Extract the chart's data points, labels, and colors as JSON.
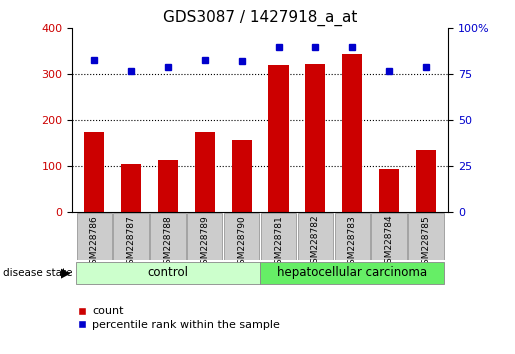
{
  "title": "GDS3087 / 1427918_a_at",
  "samples": [
    "GSM228786",
    "GSM228787",
    "GSM228788",
    "GSM228789",
    "GSM228790",
    "GSM228781",
    "GSM228782",
    "GSM228783",
    "GSM228784",
    "GSM228785"
  ],
  "counts": [
    175,
    105,
    113,
    175,
    158,
    320,
    322,
    345,
    95,
    135
  ],
  "percentiles": [
    83,
    77,
    79,
    83,
    82,
    90,
    90,
    90,
    77,
    79
  ],
  "groups": [
    "control",
    "control",
    "control",
    "control",
    "control",
    "hepatocellular carcinoma",
    "hepatocellular carcinoma",
    "hepatocellular carcinoma",
    "hepatocellular carcinoma",
    "hepatocellular carcinoma"
  ],
  "bar_color": "#cc0000",
  "dot_color": "#0000cc",
  "left_ylim": [
    0,
    400
  ],
  "right_ylim": [
    0,
    100
  ],
  "left_yticks": [
    0,
    100,
    200,
    300,
    400
  ],
  "right_yticks": [
    0,
    25,
    50,
    75,
    100
  ],
  "right_yticklabels": [
    "0",
    "25",
    "50",
    "75",
    "100%"
  ],
  "grid_values": [
    100,
    200,
    300
  ],
  "control_color": "#ccffcc",
  "carcinoma_color": "#66ee66",
  "xlabel_bg": "#cccccc",
  "title_fontsize": 11,
  "tick_fontsize": 8,
  "legend_fontsize": 8,
  "bar_width": 0.55,
  "n_control": 5,
  "n_carcinoma": 5
}
